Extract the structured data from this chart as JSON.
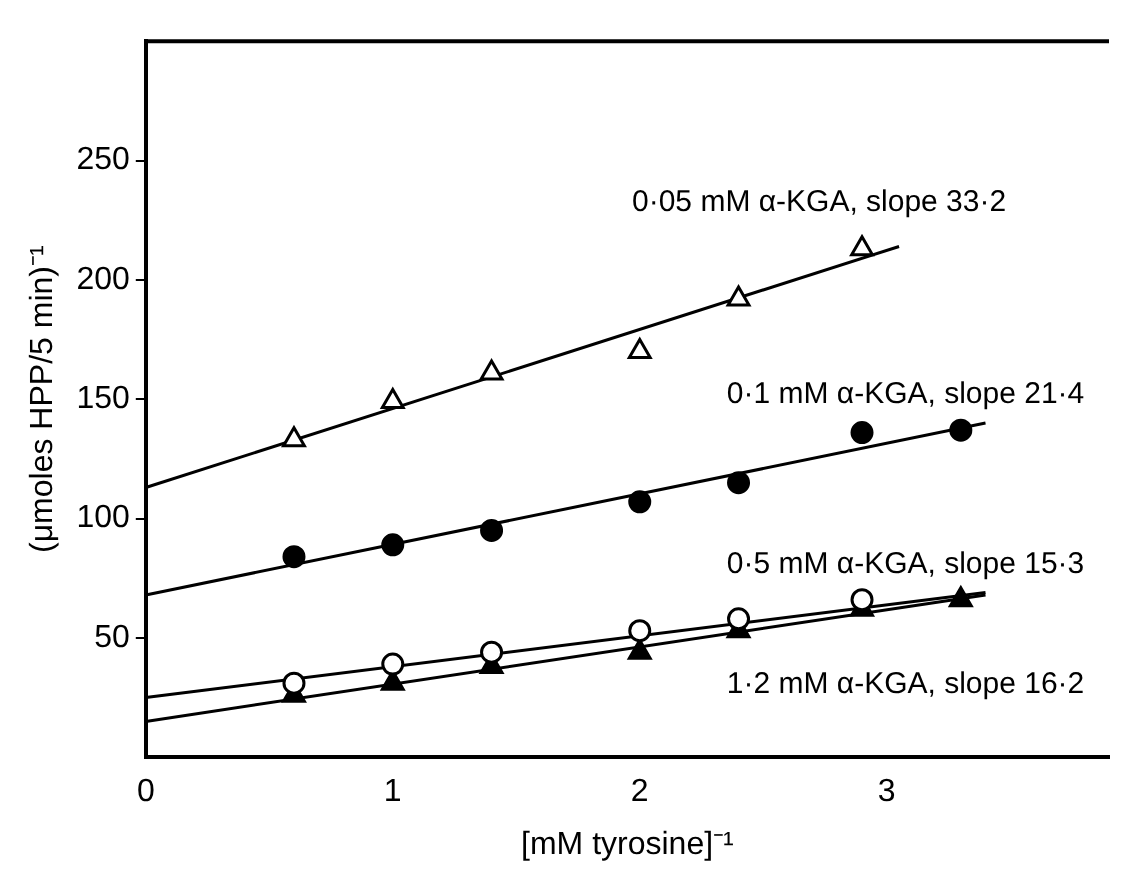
{
  "chart_data": {
    "type": "scatter",
    "xlabel": "[mM tyrosine]⁻¹",
    "ylabel": "(μmoles HPP/5 min)⁻¹",
    "xlim": [
      0,
      3.9
    ],
    "ylim": [
      0,
      300
    ],
    "xticks": [
      0,
      1,
      2,
      3
    ],
    "yticks": [
      50,
      100,
      150,
      200,
      250
    ],
    "grid": false,
    "legend": false,
    "series": [
      {
        "marker": "triangle",
        "color": "#ffffff",
        "x": [
          0.6,
          1,
          1.4,
          2,
          2.4,
          2.9
        ],
        "values": [
          133,
          149,
          161,
          170,
          192,
          213
        ]
      },
      {
        "marker": "circle",
        "color": "#000000",
        "x": [
          0.6,
          1,
          1.4,
          2,
          2.4,
          2.9,
          3.3
        ],
        "values": [
          84,
          89,
          95,
          107,
          115,
          136,
          137
        ]
      },
      {
        "marker": "circle",
        "color": "#ffffff",
        "x": [
          0.6,
          1,
          1.4,
          2,
          2.4,
          2.9
        ],
        "values": [
          31,
          39,
          44,
          53,
          58,
          66
        ]
      },
      {
        "marker": "triangle",
        "color": "#000000",
        "x": [
          0.6,
          1,
          1.4,
          2,
          2.4,
          2.9,
          3.3
        ],
        "values": [
          26,
          31,
          38,
          44,
          53,
          62,
          66
        ]
      },
      {
        "type": "line",
        "name": "0·05 mM α-KGA, slope 33·2",
        "color": "#000000",
        "x": [
          0,
          3.05
        ],
        "values": [
          113,
          214
        ]
      },
      {
        "type": "line",
        "name": "0·1 mM α-KGA, slope 21·4",
        "color": "#000000",
        "x": [
          0,
          3.4
        ],
        "values": [
          68,
          140
        ]
      },
      {
        "type": "line",
        "name": "0·5 mM α-KGA, slope 15·3",
        "color": "#000000",
        "x": [
          0,
          3.4
        ],
        "values": [
          25,
          69
        ]
      },
      {
        "type": "line",
        "name": "1·2 mM α-KGA, slope 16·2",
        "color": "#000000",
        "x": [
          0,
          3.4
        ],
        "values": [
          15,
          68
        ]
      }
    ]
  }
}
